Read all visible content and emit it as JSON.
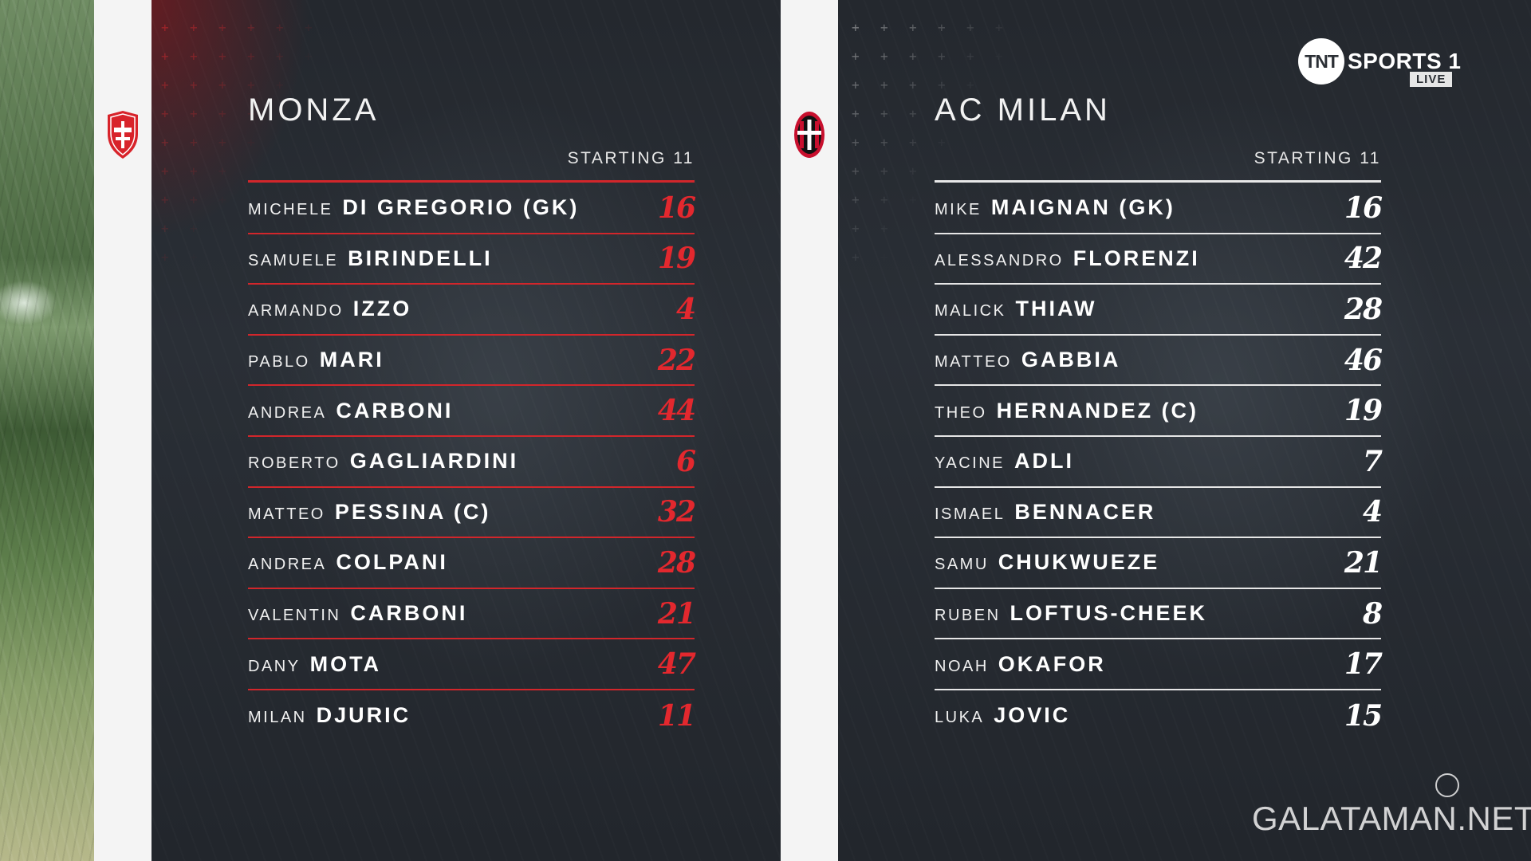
{
  "broadcaster": {
    "logo_text": "TNT",
    "channel": "SPORTS 1",
    "live_badge": "LIVE"
  },
  "watermark": "GALATAMAN.NET",
  "colors": {
    "monza_accent": "#d2262b",
    "milan_accent": "#e8e8e8"
  },
  "home": {
    "team_name": "MONZA",
    "crest_icon": "monza-crest-icon",
    "subtitle": "STARTING 11",
    "players": [
      {
        "first": "MICHELE",
        "last": "DI GREGORIO (GK)",
        "number": "16"
      },
      {
        "first": "SAMUELE",
        "last": "BIRINDELLI",
        "number": "19"
      },
      {
        "first": "ARMANDO",
        "last": "IZZO",
        "number": "4"
      },
      {
        "first": "PABLO",
        "last": "MARI",
        "number": "22"
      },
      {
        "first": "ANDREA",
        "last": "CARBONI",
        "number": "44"
      },
      {
        "first": "ROBERTO",
        "last": "GAGLIARDINI",
        "number": "6"
      },
      {
        "first": "MATTEO",
        "last": "PESSINA (C)",
        "number": "32"
      },
      {
        "first": "ANDREA",
        "last": "COLPANI",
        "number": "28"
      },
      {
        "first": "VALENTIN",
        "last": "CARBONI",
        "number": "21"
      },
      {
        "first": "DANY",
        "last": "MOTA",
        "number": "47"
      },
      {
        "first": "MILAN",
        "last": "DJURIC",
        "number": "11"
      }
    ]
  },
  "away": {
    "team_name": "AC MILAN",
    "crest_icon": "ac-milan-crest-icon",
    "subtitle": "STARTING 11",
    "players": [
      {
        "first": "MIKE",
        "last": "MAIGNAN (GK)",
        "number": "16"
      },
      {
        "first": "ALESSANDRO",
        "last": "FLORENZI",
        "number": "42"
      },
      {
        "first": "MALICK",
        "last": "THIAW",
        "number": "28"
      },
      {
        "first": "MATTEO",
        "last": "GABBIA",
        "number": "46"
      },
      {
        "first": "THEO",
        "last": "HERNANDEZ (C)",
        "number": "19"
      },
      {
        "first": "YACINE",
        "last": "ADLI",
        "number": "7"
      },
      {
        "first": "ISMAEL",
        "last": "BENNACER",
        "number": "4"
      },
      {
        "first": "SAMU",
        "last": "CHUKWUEZE",
        "number": "21"
      },
      {
        "first": "RUBEN",
        "last": "LOFTUS-CHEEK",
        "number": "8"
      },
      {
        "first": "NOAH",
        "last": "OKAFOR",
        "number": "17"
      },
      {
        "first": "LUKA",
        "last": "JOVIC",
        "number": "15"
      }
    ]
  }
}
